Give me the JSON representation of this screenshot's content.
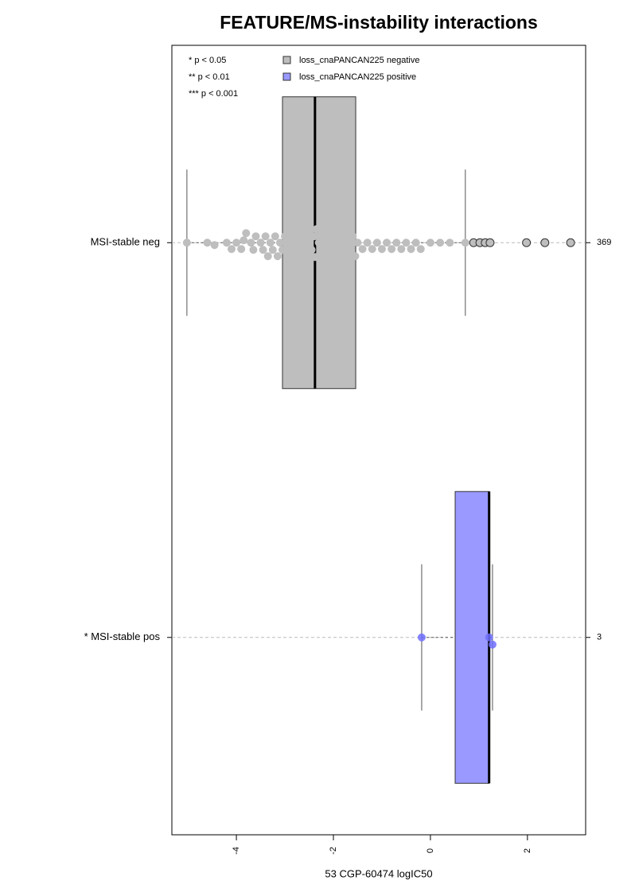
{
  "chart_data": {
    "type": "box-swarm",
    "title": "FEATURE/MS-instability interactions",
    "x_label": "53 CGP-60474 logIC50",
    "xlim": [
      -5.33,
      3.2
    ],
    "xticks": [
      -4,
      -2,
      0,
      2
    ],
    "annotations": [
      "* p < 0.05",
      "** p < 0.01",
      "*** p < 0.001"
    ],
    "series": [
      {
        "name": "loss_cnaPANCAN225 negative",
        "color": "#bebebe"
      },
      {
        "name": "loss_cnaPANCAN225 positive",
        "color": "#9999ff"
      }
    ],
    "groups": [
      {
        "label": "MSI-stable neg",
        "n": 369,
        "series": 0,
        "whisker_low": -5.02,
        "q1": -3.05,
        "median": -2.38,
        "q3": -1.54,
        "whisker_high": 0.72,
        "points": [
          -5.02,
          -4.6,
          -4.45,
          -4.2,
          -4.1,
          -4.0,
          -3.9,
          -3.85,
          -3.8,
          -3.7,
          -3.65,
          -3.6,
          -3.5,
          -3.45,
          -3.4,
          -3.35,
          -3.3,
          -3.25,
          -3.2,
          -3.15,
          -3.1,
          -3.05,
          -3.0,
          -2.95,
          -2.9,
          -2.85,
          -2.8,
          -2.75,
          -2.7,
          -2.65,
          -2.6,
          -2.55,
          -2.5,
          -2.45,
          -2.4,
          -2.38,
          -2.35,
          -2.3,
          -2.25,
          -2.2,
          -2.15,
          -2.1,
          -2.05,
          -2.0,
          -1.95,
          -1.9,
          -1.85,
          -1.8,
          -1.75,
          -1.7,
          -1.65,
          -1.6,
          -1.55,
          -1.5,
          -1.4,
          -1.3,
          -1.2,
          -1.1,
          -1.0,
          -0.9,
          -0.8,
          -0.7,
          -0.6,
          -0.5,
          -0.4,
          -0.3,
          -0.2,
          0.0,
          0.2,
          0.4,
          0.72
        ],
        "outliers": [
          0.89,
          1.02,
          1.13,
          1.23,
          1.98,
          2.36,
          2.89
        ]
      },
      {
        "label": "* MSI-stable pos",
        "n": 3,
        "series": 1,
        "whisker_low": -0.18,
        "q1": 0.51,
        "median": 1.21,
        "q3": 1.21,
        "whisker_high": 1.28,
        "points": [
          -0.18,
          1.21,
          1.28
        ],
        "outliers": []
      }
    ]
  }
}
